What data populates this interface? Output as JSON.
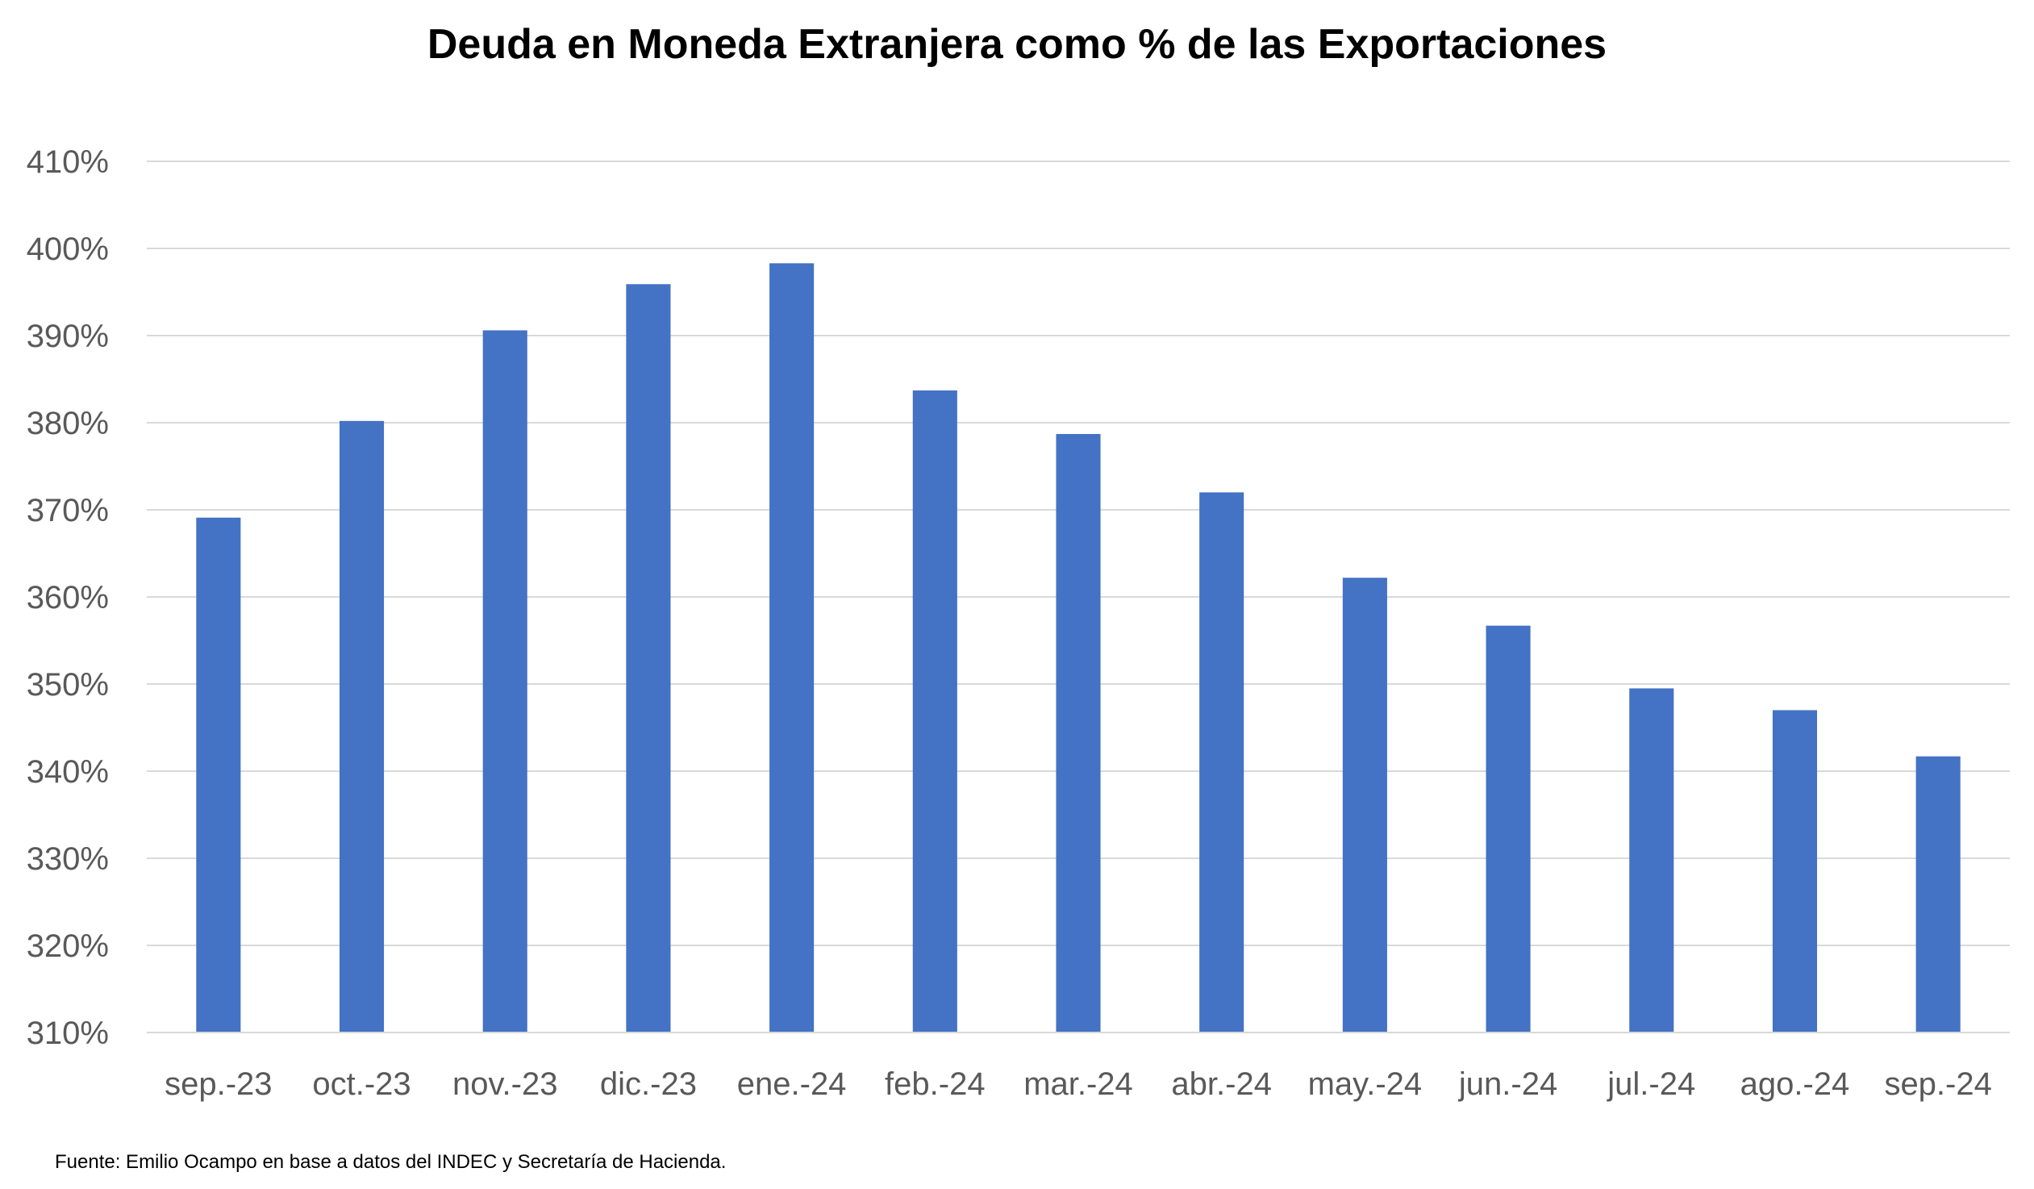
{
  "chart_data": {
    "type": "bar",
    "title": "Deuda en Moneda Extranjera como % de las Exportaciones",
    "xlabel": "",
    "ylabel": "",
    "categories": [
      "sep.-23",
      "oct.-23",
      "nov.-23",
      "dic.-23",
      "ene.-24",
      "feb.-24",
      "mar.-24",
      "abr.-24",
      "may.-24",
      "jun.-24",
      "jul.-24",
      "ago.-24",
      "sep.-24"
    ],
    "values": [
      369.1,
      380.2,
      390.6,
      395.9,
      398.3,
      383.7,
      378.7,
      372.0,
      362.2,
      356.7,
      349.5,
      347.0,
      341.7
    ],
    "ylim": [
      310,
      410
    ],
    "yticks": [
      "310%",
      "320%",
      "330%",
      "340%",
      "350%",
      "360%",
      "370%",
      "380%",
      "390%",
      "400%",
      "410%"
    ],
    "ytick_values": [
      310,
      320,
      330,
      340,
      350,
      360,
      370,
      380,
      390,
      400,
      410
    ],
    "grid": true,
    "legend": "none",
    "bar_color": "#4472c4"
  },
  "source": "Fuente: Emilio Ocampo en base a datos del INDEC y Secretaría de Hacienda."
}
